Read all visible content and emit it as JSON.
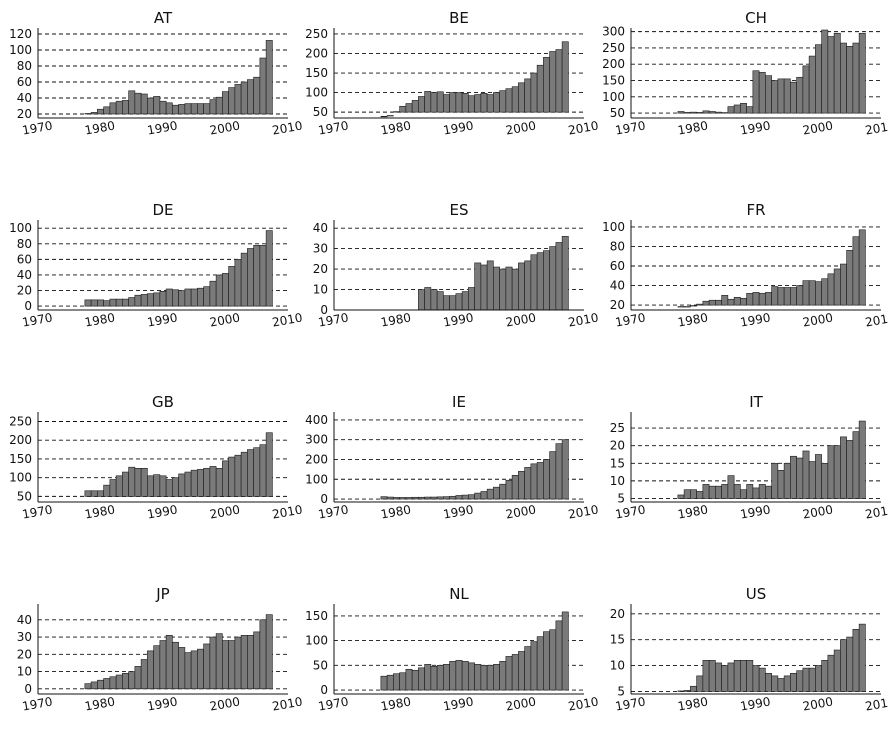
{
  "chart_data": [
    {
      "type": "bar",
      "title": "AT",
      "x_ticks": [
        "1970",
        "1980",
        "1990",
        "2000",
        "2010"
      ],
      "xlim": [
        1970,
        2010
      ],
      "y_ticks": [
        "20",
        "40",
        "60",
        "80",
        "100",
        "120"
      ],
      "ylim": [
        15,
        125
      ],
      "years": [
        1978,
        1979,
        1980,
        1981,
        1982,
        1983,
        1984,
        1985,
        1986,
        1987,
        1988,
        1989,
        1990,
        1991,
        1992,
        1993,
        1994,
        1995,
        1996,
        1997,
        1998,
        1999,
        2000,
        2001,
        2002,
        2003,
        2004,
        2005,
        2006,
        2007
      ],
      "values": [
        20,
        22,
        26,
        29,
        34,
        36,
        37,
        49,
        46,
        45,
        40,
        42,
        36,
        34,
        31,
        32,
        33,
        33,
        33,
        33,
        38,
        41,
        48,
        53,
        57,
        60,
        63,
        66,
        90,
        112
      ]
    },
    {
      "type": "bar",
      "title": "BE",
      "x_ticks": [
        "1970",
        "1980",
        "1990",
        "2000",
        "2010"
      ],
      "xlim": [
        1970,
        2010
      ],
      "y_ticks": [
        "50",
        "100",
        "150",
        "200",
        "250"
      ],
      "ylim": [
        35,
        260
      ],
      "years": [
        1978,
        1979,
        1980,
        1981,
        1982,
        1983,
        1984,
        1985,
        1986,
        1987,
        1988,
        1989,
        1990,
        1991,
        1992,
        1993,
        1994,
        1995,
        1996,
        1997,
        1998,
        1999,
        2000,
        2001,
        2002,
        2003,
        2004,
        2005,
        2006,
        2007
      ],
      "values": [
        38,
        40,
        50,
        65,
        72,
        80,
        90,
        103,
        100,
        102,
        95,
        100,
        100,
        98,
        92,
        95,
        98,
        95,
        100,
        105,
        110,
        115,
        125,
        135,
        150,
        170,
        190,
        205,
        210,
        230
      ]
    },
    {
      "type": "bar",
      "title": "CH",
      "x_ticks": [
        "1970",
        "1980",
        "1990",
        "2000",
        "2010"
      ],
      "xlim": [
        1970,
        2010
      ],
      "y_ticks": [
        "50",
        "100",
        "150",
        "200",
        "250",
        "300"
      ],
      "ylim": [
        35,
        305
      ],
      "years": [
        1978,
        1979,
        1980,
        1981,
        1982,
        1983,
        1984,
        1985,
        1986,
        1987,
        1988,
        1989,
        1990,
        1991,
        1992,
        1993,
        1994,
        1995,
        1996,
        1997,
        1998,
        1999,
        2000,
        2001,
        2002,
        2003,
        2004,
        2005,
        2006,
        2007
      ],
      "values": [
        55,
        52,
        53,
        52,
        57,
        55,
        53,
        50,
        70,
        75,
        80,
        70,
        180,
        175,
        165,
        150,
        155,
        155,
        145,
        160,
        195,
        225,
        260,
        305,
        285,
        295,
        265,
        255,
        265,
        295
      ]
    },
    {
      "type": "bar",
      "title": "DE",
      "x_ticks": [
        "1970",
        "1980",
        "1990",
        "2000",
        "2010"
      ],
      "xlim": [
        1970,
        2010
      ],
      "y_ticks": [
        "0",
        "20",
        "40",
        "60",
        "80",
        "100"
      ],
      "ylim": [
        -5,
        108
      ],
      "years": [
        1978,
        1979,
        1980,
        1981,
        1982,
        1983,
        1984,
        1985,
        1986,
        1987,
        1988,
        1989,
        1990,
        1991,
        1992,
        1993,
        1994,
        1995,
        1996,
        1997,
        1998,
        1999,
        2000,
        2001,
        2002,
        2003,
        2004,
        2005,
        2006,
        2007
      ],
      "values": [
        8,
        8,
        8,
        7,
        9,
        9,
        9,
        11,
        14,
        15,
        16,
        17,
        19,
        22,
        21,
        20,
        22,
        22,
        23,
        25,
        32,
        40,
        42,
        51,
        60,
        68,
        74,
        78,
        78,
        97
      ]
    },
    {
      "type": "bar",
      "title": "ES",
      "x_ticks": [
        "1970",
        "1980",
        "1990",
        "2000",
        "2010"
      ],
      "xlim": [
        1970,
        2010
      ],
      "y_ticks": [
        "0",
        "10",
        "20",
        "30",
        "40"
      ],
      "ylim": [
        0,
        43
      ],
      "years": [
        1984,
        1985,
        1986,
        1987,
        1988,
        1989,
        1990,
        1991,
        1992,
        1993,
        1994,
        1995,
        1996,
        1997,
        1998,
        1999,
        2000,
        2001,
        2002,
        2003,
        2004,
        2005,
        2006,
        2007
      ],
      "values": [
        10,
        11,
        10,
        9,
        7,
        7,
        8,
        9,
        11,
        23,
        22,
        24,
        21,
        20,
        21,
        20,
        23,
        24,
        27,
        28,
        29,
        31,
        33,
        36
      ]
    },
    {
      "type": "bar",
      "title": "FR",
      "x_ticks": [
        "1970",
        "1980",
        "1990",
        "2000",
        "2010"
      ],
      "xlim": [
        1970,
        2010
      ],
      "y_ticks": [
        "20",
        "40",
        "60",
        "80",
        "100"
      ],
      "ylim": [
        15,
        105
      ],
      "years": [
        1978,
        1979,
        1980,
        1981,
        1982,
        1983,
        1984,
        1985,
        1986,
        1987,
        1988,
        1989,
        1990,
        1991,
        1992,
        1993,
        1994,
        1995,
        1996,
        1997,
        1998,
        1999,
        2000,
        2001,
        2002,
        2003,
        2004,
        2005,
        2006,
        2007
      ],
      "values": [
        18,
        18,
        19,
        21,
        24,
        25,
        25,
        30,
        26,
        28,
        27,
        32,
        33,
        32,
        33,
        39,
        38,
        38,
        38,
        40,
        45,
        45,
        44,
        47,
        52,
        57,
        62,
        76,
        90,
        97
      ]
    },
    {
      "type": "bar",
      "title": "GB",
      "x_ticks": [
        "1970",
        "1980",
        "1990",
        "2000",
        "2010"
      ],
      "xlim": [
        1970,
        2010
      ],
      "y_ticks": [
        "50",
        "100",
        "150",
        "200",
        "250"
      ],
      "ylim": [
        35,
        270
      ],
      "years": [
        1978,
        1979,
        1980,
        1981,
        1982,
        1983,
        1984,
        1985,
        1986,
        1987,
        1988,
        1989,
        1990,
        1991,
        1992,
        1993,
        1994,
        1995,
        1996,
        1997,
        1998,
        1999,
        2000,
        2001,
        2002,
        2003,
        2004,
        2005,
        2006,
        2007
      ],
      "values": [
        65,
        65,
        65,
        80,
        95,
        105,
        115,
        128,
        125,
        125,
        105,
        108,
        105,
        95,
        100,
        110,
        115,
        120,
        122,
        125,
        130,
        125,
        145,
        155,
        160,
        168,
        175,
        180,
        188,
        220
      ]
    },
    {
      "type": "bar",
      "title": "IE",
      "x_ticks": [
        "1970",
        "1980",
        "1990",
        "2000",
        "2010"
      ],
      "xlim": [
        1970,
        2010
      ],
      "y_ticks": [
        "0",
        "100",
        "200",
        "300",
        "400"
      ],
      "ylim": [
        -15,
        430
      ],
      "years": [
        1978,
        1979,
        1980,
        1981,
        1982,
        1983,
        1984,
        1985,
        1986,
        1987,
        1988,
        1989,
        1990,
        1991,
        1992,
        1993,
        1994,
        1995,
        1996,
        1997,
        1998,
        1999,
        2000,
        2001,
        2002,
        2003,
        2004,
        2005,
        2006,
        2007
      ],
      "values": [
        12,
        10,
        8,
        8,
        8,
        9,
        9,
        10,
        10,
        11,
        12,
        14,
        18,
        20,
        22,
        30,
        38,
        50,
        60,
        75,
        95,
        120,
        140,
        160,
        178,
        185,
        200,
        240,
        280,
        300
      ]
    },
    {
      "type": "bar",
      "title": "IT",
      "x_ticks": [
        "1970",
        "1980",
        "1990",
        "2000",
        "2010"
      ],
      "xlim": [
        1970,
        2010
      ],
      "y_ticks": [
        "5",
        "10",
        "15",
        "20",
        "25"
      ],
      "ylim": [
        4,
        29
      ],
      "years": [
        1978,
        1979,
        1980,
        1981,
        1982,
        1983,
        1984,
        1985,
        1986,
        1987,
        1988,
        1989,
        1990,
        1991,
        1992,
        1993,
        1994,
        1995,
        1996,
        1997,
        1998,
        1999,
        2000,
        2001,
        2002,
        2003,
        2004,
        2005,
        2006,
        2007
      ],
      "values": [
        6,
        7.5,
        7.5,
        7,
        9,
        8.5,
        8.5,
        9,
        11.5,
        9,
        7.5,
        9,
        8,
        9,
        8.5,
        15,
        13,
        15,
        17,
        16.5,
        18.5,
        15.5,
        17.5,
        15,
        20,
        20,
        22.5,
        21.5,
        24,
        27
      ]
    },
    {
      "type": "bar",
      "title": "JP",
      "x_ticks": [
        "1970",
        "1980",
        "1990",
        "2000",
        "2010"
      ],
      "xlim": [
        1970,
        2010
      ],
      "y_ticks": [
        "0",
        "10",
        "20",
        "30",
        "40"
      ],
      "ylim": [
        -3,
        48
      ],
      "years": [
        1978,
        1979,
        1980,
        1981,
        1982,
        1983,
        1984,
        1985,
        1986,
        1987,
        1988,
        1989,
        1990,
        1991,
        1992,
        1993,
        1994,
        1995,
        1996,
        1997,
        1998,
        1999,
        2000,
        2001,
        2002,
        2003,
        2004,
        2005,
        2006,
        2007
      ],
      "values": [
        3,
        4,
        5,
        6,
        7,
        8,
        9,
        10,
        13,
        17,
        22,
        25,
        28,
        31,
        27,
        24,
        21,
        22,
        23,
        26,
        30,
        32,
        28,
        28,
        30,
        31,
        31,
        33,
        40,
        43
      ]
    },
    {
      "type": "bar",
      "title": "NL",
      "x_ticks": [
        "1970",
        "1980",
        "1990",
        "2000",
        "2010"
      ],
      "xlim": [
        1970,
        2010
      ],
      "y_ticks": [
        "0",
        "50",
        "100",
        "150"
      ],
      "ylim": [
        -8,
        170
      ],
      "years": [
        1978,
        1979,
        1980,
        1981,
        1982,
        1983,
        1984,
        1985,
        1986,
        1987,
        1988,
        1989,
        1990,
        1991,
        1992,
        1993,
        1994,
        1995,
        1996,
        1997,
        1998,
        1999,
        2000,
        2001,
        2002,
        2003,
        2004,
        2005,
        2006,
        2007
      ],
      "values": [
        28,
        30,
        33,
        35,
        42,
        40,
        45,
        52,
        48,
        50,
        52,
        58,
        60,
        58,
        55,
        52,
        50,
        50,
        52,
        58,
        68,
        72,
        78,
        88,
        98,
        108,
        118,
        122,
        140,
        158
      ]
    },
    {
      "type": "bar",
      "title": "US",
      "x_ticks": [
        "1970",
        "1980",
        "1990",
        "2000",
        "2010"
      ],
      "xlim": [
        1970,
        2010
      ],
      "y_ticks": [
        "5",
        "10",
        "15",
        "20"
      ],
      "ylim": [
        4.5,
        21.5
      ],
      "years": [
        1978,
        1979,
        1980,
        1981,
        1982,
        1983,
        1984,
        1985,
        1986,
        1987,
        1988,
        1989,
        1990,
        1991,
        1992,
        1993,
        1994,
        1995,
        1996,
        1997,
        1998,
        1999,
        2000,
        2001,
        2002,
        2003,
        2004,
        2005,
        2006,
        2007
      ],
      "values": [
        5,
        5.2,
        6,
        8,
        11,
        11,
        10.5,
        10,
        10.5,
        11,
        11,
        11,
        10,
        9.5,
        8.5,
        8,
        7.5,
        8,
        8.5,
        9,
        9.5,
        9.5,
        10,
        11,
        12,
        13,
        15,
        15.5,
        17,
        18
      ]
    }
  ]
}
